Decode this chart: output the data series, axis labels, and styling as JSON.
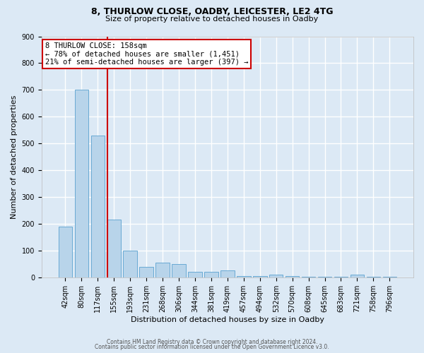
{
  "title": "8, THURLOW CLOSE, OADBY, LEICESTER, LE2 4TG",
  "subtitle": "Size of property relative to detached houses in Oadby",
  "xlabel": "Distribution of detached houses by size in Oadby",
  "ylabel": "Number of detached properties",
  "categories": [
    "42sqm",
    "80sqm",
    "117sqm",
    "155sqm",
    "193sqm",
    "231sqm",
    "268sqm",
    "306sqm",
    "344sqm",
    "381sqm",
    "419sqm",
    "457sqm",
    "494sqm",
    "532sqm",
    "570sqm",
    "608sqm",
    "645sqm",
    "683sqm",
    "721sqm",
    "758sqm",
    "796sqm"
  ],
  "values": [
    190,
    700,
    530,
    215,
    100,
    40,
    55,
    50,
    20,
    20,
    25,
    5,
    5,
    10,
    5,
    2,
    2,
    2,
    10,
    2,
    2
  ],
  "bar_color": "#b8d4ea",
  "bar_edge_color": "#6aaad4",
  "red_line_x": 2.58,
  "red_line_label": "8 THURLOW CLOSE: 158sqm",
  "annotation_line1": "← 78% of detached houses are smaller (1,451)",
  "annotation_line2": "21% of semi-detached houses are larger (397) →",
  "annotation_box_color": "#ffffff",
  "annotation_box_edge_color": "#cc0000",
  "bg_color": "#dce9f5",
  "plot_bg_color": "#dce9f5",
  "grid_color": "#ffffff",
  "ylim": [
    0,
    900
  ],
  "yticks": [
    0,
    100,
    200,
    300,
    400,
    500,
    600,
    700,
    800,
    900
  ],
  "footer_line1": "Contains HM Land Registry data © Crown copyright and database right 2024.",
  "footer_line2": "Contains public sector information licensed under the Open Government Licence v3.0.",
  "title_fontsize": 9,
  "subtitle_fontsize": 8,
  "axis_label_fontsize": 8,
  "tick_fontsize": 7,
  "annotation_fontsize": 7.5,
  "footer_fontsize": 5.5
}
